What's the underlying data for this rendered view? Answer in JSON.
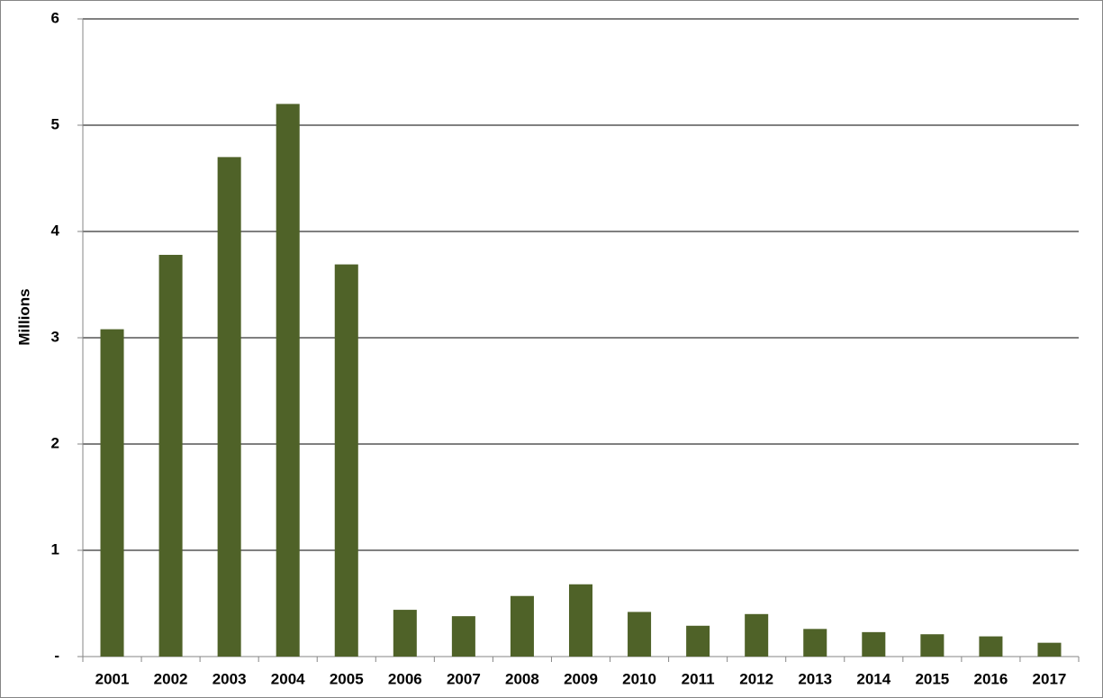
{
  "chart_data": {
    "type": "bar",
    "y_label": "Millions",
    "categories": [
      "2001",
      "2002",
      "2003",
      "2004",
      "2005",
      "2006",
      "2007",
      "2008",
      "2009",
      "2010",
      "2011",
      "2012",
      "2013",
      "2014",
      "2015",
      "2016",
      "2017"
    ],
    "values": [
      3.08,
      3.78,
      4.7,
      5.2,
      3.69,
      0.44,
      0.38,
      0.57,
      0.68,
      0.42,
      0.29,
      0.4,
      0.26,
      0.23,
      0.21,
      0.19,
      0.13
    ],
    "color": "#4f6228",
    "ylim": [
      0,
      6
    ],
    "yticks": [
      {
        "value": 0,
        "label": "-"
      },
      1,
      2,
      3,
      4,
      5,
      6
    ],
    "grid": true
  }
}
